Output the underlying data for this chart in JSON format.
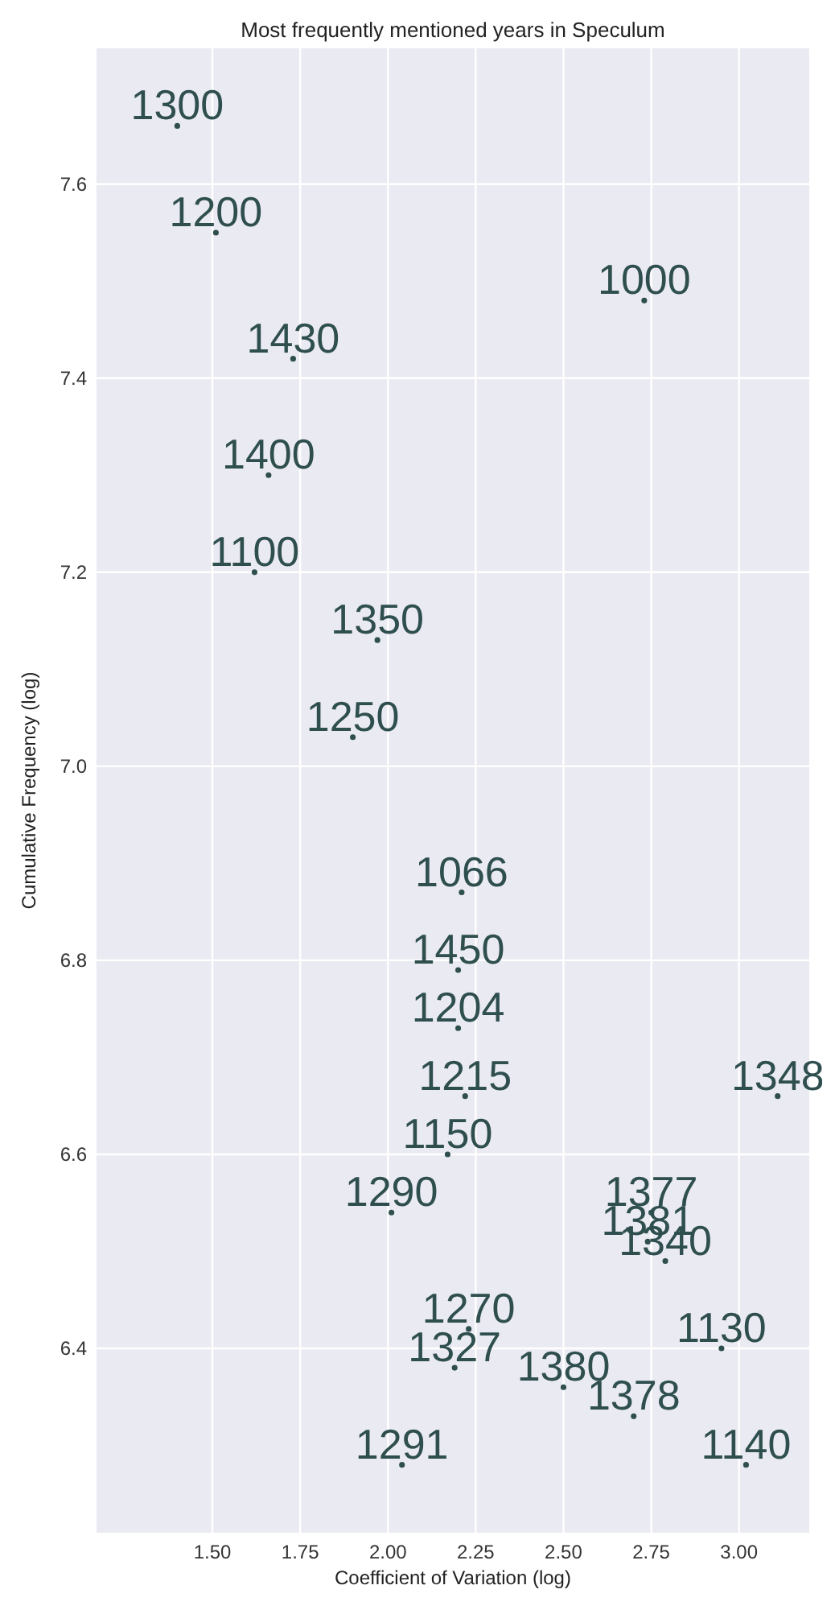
{
  "chart_data": {
    "type": "scatter",
    "title": "Most frequently mentioned years in Speculum",
    "xlabel": "Coefficient of Variation (log)",
    "ylabel": "Cumulative Frequency (log)",
    "grid": true,
    "marker": "circle",
    "series": [
      {
        "color": "#2f4f4f",
        "x": [
          1.4,
          1.51,
          1.73,
          1.66,
          1.62,
          1.97,
          1.9,
          2.73,
          2.21,
          2.2,
          2.2,
          3.11,
          2.22,
          2.17,
          2.01,
          2.75,
          2.74,
          2.79,
          2.23,
          2.95,
          2.19,
          2.5,
          2.7,
          2.04,
          3.02
        ],
        "values": [
          7.66,
          7.55,
          7.42,
          7.3,
          7.2,
          7.13,
          7.03,
          7.48,
          6.87,
          6.79,
          6.73,
          6.66,
          6.66,
          6.6,
          6.54,
          6.54,
          6.51,
          6.49,
          6.42,
          6.4,
          6.38,
          6.36,
          6.33,
          6.28,
          6.28
        ]
      }
    ],
    "xlim": [
      1.17,
      3.2
    ],
    "xticks": [
      {
        "value": 1.5,
        "label": "1.50"
      },
      {
        "value": 1.75,
        "label": "1.75"
      },
      {
        "value": 2,
        "label": "2.00"
      },
      {
        "value": 2.25,
        "label": "2.25"
      },
      {
        "value": 2.5,
        "label": "2.50"
      },
      {
        "value": 2.75,
        "label": "2.75"
      },
      {
        "value": 3,
        "label": "3.00"
      }
    ],
    "ylim": [
      6.21,
      7.74
    ],
    "yticks": [
      {
        "value": 6.4,
        "label": "6.4"
      },
      {
        "value": 6.6,
        "label": "6.6"
      },
      {
        "value": 6.8,
        "label": "6.8"
      },
      {
        "value": 7,
        "label": "7.0"
      },
      {
        "value": 7.2,
        "label": "7.2"
      },
      {
        "value": 7.4,
        "label": "7.4"
      },
      {
        "value": 7.6,
        "label": "7.6"
      }
    ],
    "annotations": [
      {
        "text": "1300",
        "x": 1.4,
        "y": 7.66
      },
      {
        "text": "1200",
        "x": 1.51,
        "y": 7.55
      },
      {
        "text": "1430",
        "x": 1.73,
        "y": 7.42
      },
      {
        "text": "1400",
        "x": 1.66,
        "y": 7.3
      },
      {
        "text": "1100",
        "x": 1.62,
        "y": 7.2
      },
      {
        "text": "1350",
        "x": 1.97,
        "y": 7.13
      },
      {
        "text": "1250",
        "x": 1.9,
        "y": 7.03
      },
      {
        "text": "1000",
        "x": 2.73,
        "y": 7.48
      },
      {
        "text": "1066",
        "x": 2.21,
        "y": 6.87
      },
      {
        "text": "1450",
        "x": 2.2,
        "y": 6.79
      },
      {
        "text": "1204",
        "x": 2.2,
        "y": 6.73
      },
      {
        "text": "1348",
        "x": 3.11,
        "y": 6.66
      },
      {
        "text": "1215",
        "x": 2.22,
        "y": 6.66
      },
      {
        "text": "1150",
        "x": 2.17,
        "y": 6.6
      },
      {
        "text": "1290",
        "x": 2.01,
        "y": 6.54
      },
      {
        "text": "1377",
        "x": 2.75,
        "y": 6.54
      },
      {
        "text": "1381",
        "x": 2.74,
        "y": 6.51
      },
      {
        "text": "1340",
        "x": 2.79,
        "y": 6.49
      },
      {
        "text": "1270",
        "x": 2.23,
        "y": 6.42
      },
      {
        "text": "1130",
        "x": 2.95,
        "y": 6.4
      },
      {
        "text": "1327",
        "x": 2.19,
        "y": 6.38
      },
      {
        "text": "1380",
        "x": 2.5,
        "y": 6.36
      },
      {
        "text": "1378",
        "x": 2.7,
        "y": 6.33
      },
      {
        "text": "1291",
        "x": 2.04,
        "y": 6.28
      },
      {
        "text": "1140",
        "x": 3.02,
        "y": 6.28
      }
    ]
  }
}
